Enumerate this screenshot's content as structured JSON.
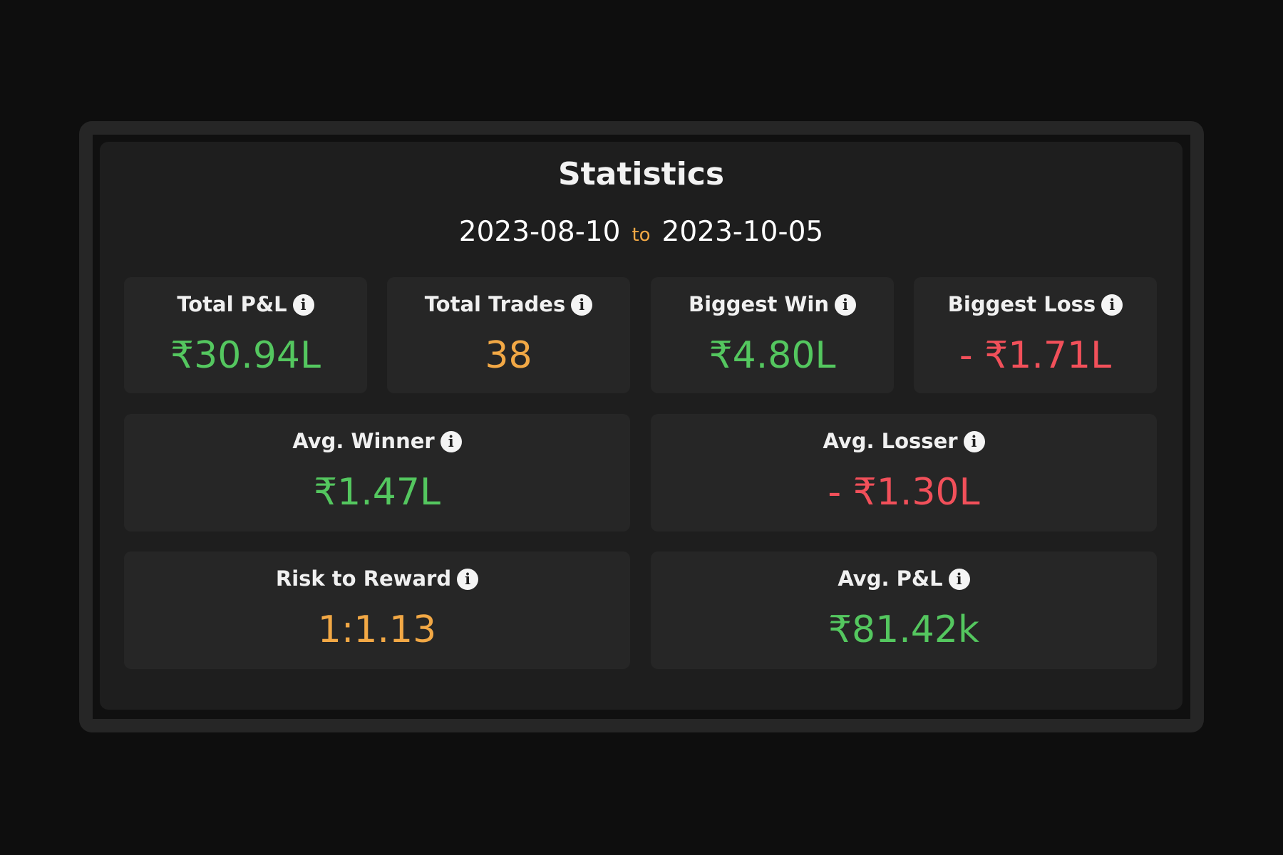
{
  "statistics": {
    "title": "Statistics",
    "date_from": "2023-08-10",
    "date_separator": "to",
    "date_to": "2023-10-05"
  },
  "cards": [
    {
      "label": "Total P&L",
      "value": "₹30.94L",
      "tone": "green"
    },
    {
      "label": "Total Trades",
      "value": "38",
      "tone": "orange"
    },
    {
      "label": "Biggest Win",
      "value": "₹4.80L",
      "tone": "green"
    },
    {
      "label": "Biggest Loss",
      "value": "- ₹1.71L",
      "tone": "red"
    },
    {
      "label": "Avg. Winner",
      "value": "₹1.47L",
      "tone": "green"
    },
    {
      "label": "Avg. Losser",
      "value": "- ₹1.30L",
      "tone": "red"
    },
    {
      "label": "Risk to Reward",
      "value": "1:1.13",
      "tone": "orange"
    },
    {
      "label": "Avg. P&L",
      "value": "₹81.42k",
      "tone": "green"
    }
  ],
  "info_icon": {
    "glyph": "i",
    "name": "info-icon"
  },
  "colors": {
    "positive": "#54c75f",
    "neutral": "#f2a845",
    "negative": "#f2505a",
    "panel": "#1e1e1e",
    "card": "#262626"
  }
}
